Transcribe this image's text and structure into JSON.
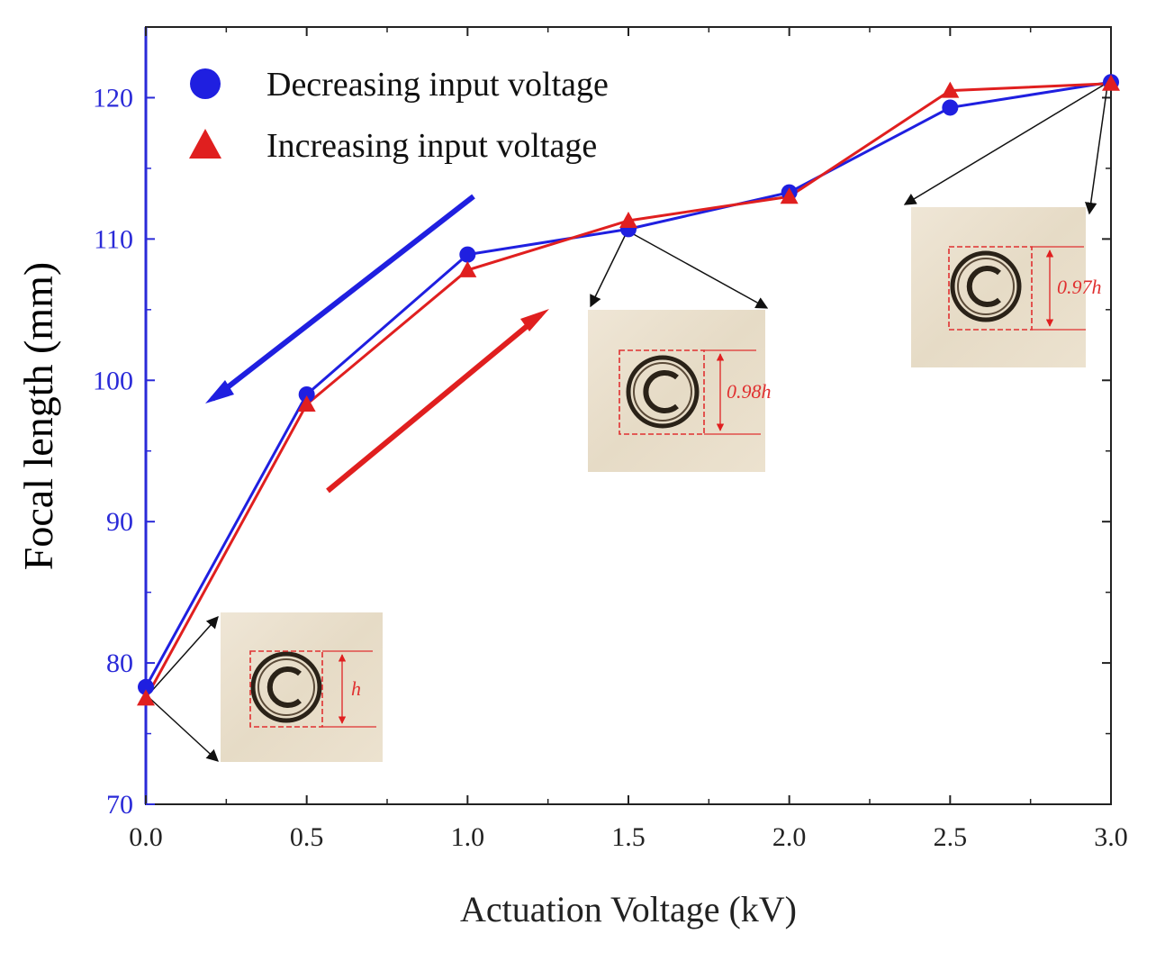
{
  "chart_data": {
    "type": "line",
    "xlabel": "Actuation Voltage (kV)",
    "ylabel": "Focal length (mm)",
    "xlim": [
      0,
      3
    ],
    "ylim": [
      70,
      125
    ],
    "x_ticks": [
      0.0,
      0.5,
      1.0,
      1.5,
      2.0,
      2.5,
      3.0
    ],
    "x_tick_labels": [
      "0.0",
      "0.5",
      "1.0",
      "1.5",
      "2.0",
      "2.5",
      "3.0"
    ],
    "y_ticks": [
      70,
      80,
      90,
      100,
      110,
      120
    ],
    "y_tick_labels": [
      "70",
      "80",
      "90",
      "100",
      "110",
      "120"
    ],
    "grid": false,
    "legend_position": "top-left",
    "x": [
      0.0,
      0.5,
      1.0,
      1.5,
      2.0,
      2.5,
      3.0
    ],
    "series": [
      {
        "name": "Decreasing input voltage",
        "marker": "circle",
        "color": "#1f1fe0",
        "values": [
          78.3,
          99.0,
          108.9,
          110.7,
          113.3,
          119.3,
          121.1
        ]
      },
      {
        "name": "Increasing input voltage",
        "marker": "triangle",
        "color": "#e01f1f",
        "values": [
          77.5,
          98.3,
          107.8,
          111.3,
          113.0,
          120.5,
          121.0
        ]
      }
    ],
    "axis_color": "#2a2ad8",
    "insets": [
      {
        "label": "h",
        "anchor_x": 0.0,
        "anchor_y": 78.0
      },
      {
        "label": "0.98h",
        "anchor_x": 1.5,
        "anchor_y": 110.7
      },
      {
        "label": "0.97h",
        "anchor_x": 3.0,
        "anchor_y": 121.1
      }
    ]
  }
}
